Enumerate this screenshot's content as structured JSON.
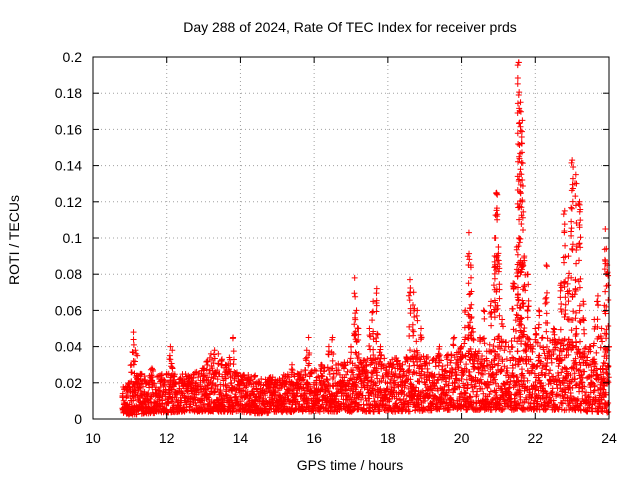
{
  "chart_data": {
    "type": "scatter",
    "title": "Day 288 of 2024, Rate Of TEC Index for receiver prds",
    "xlabel": "GPS time / hours",
    "ylabel": "ROTI / TECUs",
    "xlim": [
      10,
      24
    ],
    "ylim": [
      0,
      0.2
    ],
    "xticks": [
      "10",
      "12",
      "14",
      "16",
      "18",
      "20",
      "22",
      "24"
    ],
    "yticks": [
      "0",
      "0.02",
      "0.04",
      "0.06",
      "0.08",
      "0.1",
      "0.12",
      "0.14",
      "0.16",
      "0.18",
      "0.2"
    ],
    "grid": true,
    "marker": "plus",
    "color": "#ff0000",
    "series": [
      {
        "name": "ROTI",
        "points": [
          [
            10.8,
            0.012
          ],
          [
            10.9,
            0.018
          ],
          [
            11.0,
            0.02
          ],
          [
            11.05,
            0.03
          ],
          [
            11.1,
            0.048
          ],
          [
            11.15,
            0.038
          ],
          [
            11.2,
            0.035
          ],
          [
            11.3,
            0.025
          ],
          [
            11.4,
            0.015
          ],
          [
            11.5,
            0.02
          ],
          [
            11.6,
            0.028
          ],
          [
            11.8,
            0.012
          ],
          [
            11.9,
            0.02
          ],
          [
            12.0,
            0.025
          ],
          [
            12.1,
            0.04
          ],
          [
            12.15,
            0.038
          ],
          [
            12.2,
            0.02
          ],
          [
            12.4,
            0.015
          ],
          [
            12.6,
            0.018
          ],
          [
            12.8,
            0.02
          ],
          [
            13.0,
            0.028
          ],
          [
            13.1,
            0.032
          ],
          [
            13.2,
            0.036
          ],
          [
            13.3,
            0.038
          ],
          [
            13.4,
            0.036
          ],
          [
            13.5,
            0.033
          ],
          [
            13.6,
            0.03
          ],
          [
            13.7,
            0.034
          ],
          [
            13.8,
            0.045
          ],
          [
            13.9,
            0.025
          ],
          [
            14.0,
            0.02
          ],
          [
            14.2,
            0.015
          ],
          [
            14.4,
            0.024
          ],
          [
            14.6,
            0.016
          ],
          [
            14.8,
            0.012
          ],
          [
            15.0,
            0.02
          ],
          [
            15.2,
            0.018
          ],
          [
            15.4,
            0.03
          ],
          [
            15.6,
            0.022
          ],
          [
            15.8,
            0.038
          ],
          [
            15.85,
            0.045
          ],
          [
            16.0,
            0.02
          ],
          [
            16.2,
            0.03
          ],
          [
            16.4,
            0.04
          ],
          [
            16.5,
            0.045
          ],
          [
            16.6,
            0.025
          ],
          [
            16.8,
            0.02
          ],
          [
            17.0,
            0.04
          ],
          [
            17.1,
            0.078
          ],
          [
            17.15,
            0.06
          ],
          [
            17.2,
            0.05
          ],
          [
            17.3,
            0.03
          ],
          [
            17.5,
            0.05
          ],
          [
            17.6,
            0.065
          ],
          [
            17.7,
            0.072
          ],
          [
            17.8,
            0.04
          ],
          [
            18.0,
            0.025
          ],
          [
            18.2,
            0.02
          ],
          [
            18.4,
            0.03
          ],
          [
            18.6,
            0.077
          ],
          [
            18.7,
            0.07
          ],
          [
            18.8,
            0.06
          ],
          [
            18.9,
            0.05
          ],
          [
            19.0,
            0.02
          ],
          [
            19.2,
            0.025
          ],
          [
            19.4,
            0.04
          ],
          [
            19.6,
            0.035
          ],
          [
            19.8,
            0.045
          ],
          [
            20.0,
            0.04
          ],
          [
            20.1,
            0.06
          ],
          [
            20.2,
            0.103
          ],
          [
            20.25,
            0.085
          ],
          [
            20.3,
            0.05
          ],
          [
            20.5,
            0.045
          ],
          [
            20.6,
            0.06
          ],
          [
            20.8,
            0.065
          ],
          [
            20.9,
            0.1
          ],
          [
            20.95,
            0.125
          ],
          [
            21.0,
            0.095
          ],
          [
            21.1,
            0.055
          ],
          [
            21.2,
            0.04
          ],
          [
            21.4,
            0.075
          ],
          [
            21.5,
            0.095
          ],
          [
            21.55,
            0.197
          ],
          [
            21.6,
            0.175
          ],
          [
            21.65,
            0.165
          ],
          [
            21.7,
            0.09
          ],
          [
            21.8,
            0.08
          ],
          [
            22.0,
            0.05
          ],
          [
            22.1,
            0.06
          ],
          [
            22.2,
            0.045
          ],
          [
            22.3,
            0.085
          ],
          [
            22.5,
            0.05
          ],
          [
            22.7,
            0.075
          ],
          [
            22.8,
            0.115
          ],
          [
            22.9,
            0.09
          ],
          [
            23.0,
            0.143
          ],
          [
            23.1,
            0.135
          ],
          [
            23.2,
            0.12
          ],
          [
            23.3,
            0.065
          ],
          [
            23.5,
            0.04
          ],
          [
            23.6,
            0.055
          ],
          [
            23.7,
            0.068
          ],
          [
            23.8,
            0.05
          ],
          [
            23.9,
            0.105
          ],
          [
            23.95,
            0.085
          ],
          [
            24.0,
            0.04
          ]
        ],
        "dense_band": [
          [
            10.8,
            0.002,
            0.02
          ],
          [
            11.5,
            0.003,
            0.025
          ],
          [
            12.5,
            0.004,
            0.025
          ],
          [
            13.5,
            0.004,
            0.03
          ],
          [
            14.5,
            0.003,
            0.022
          ],
          [
            15.5,
            0.004,
            0.026
          ],
          [
            16.5,
            0.004,
            0.03
          ],
          [
            17.5,
            0.004,
            0.035
          ],
          [
            18.5,
            0.004,
            0.035
          ],
          [
            19.5,
            0.005,
            0.035
          ],
          [
            20.5,
            0.005,
            0.04
          ],
          [
            21.5,
            0.005,
            0.045
          ],
          [
            22.5,
            0.005,
            0.045
          ],
          [
            23.5,
            0.004,
            0.04
          ],
          [
            24.0,
            0.003,
            0.03
          ]
        ]
      }
    ]
  }
}
